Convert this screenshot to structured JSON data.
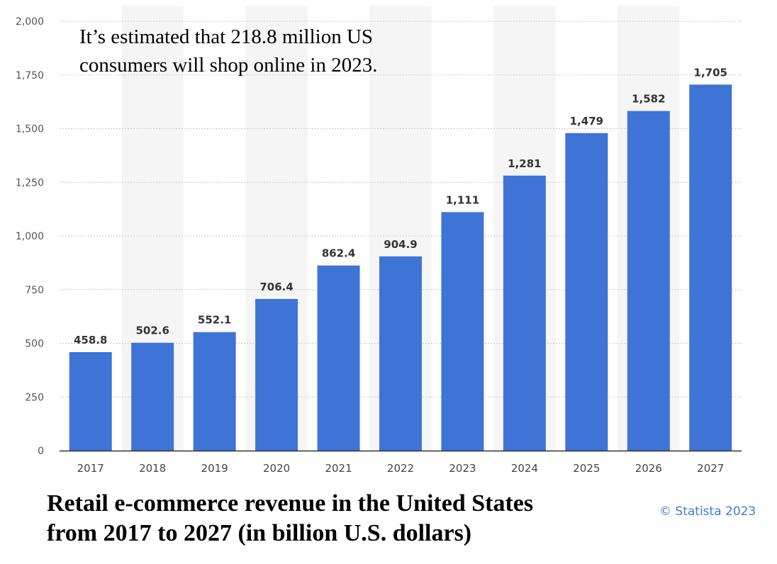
{
  "chart_data": {
    "type": "bar",
    "title_line1": "Retail e-commerce revenue in the United States",
    "title_line2": "from 2017 to 2027 (in billion U.S. dollars)",
    "annotation_line1": "It’s estimated that 218.8 million US",
    "annotation_line2": "consumers will shop online in 2023.",
    "source": "© Statista 2023",
    "xlabel": "",
    "ylabel": "",
    "categories": [
      "2017",
      "2018",
      "2019",
      "2020",
      "2021",
      "2022",
      "2023",
      "2024",
      "2025",
      "2026",
      "2027"
    ],
    "values": [
      458.8,
      502.6,
      552.1,
      706.4,
      862.4,
      904.9,
      1111,
      1281,
      1479,
      1582,
      1705
    ],
    "value_labels": [
      "458.8",
      "502.6",
      "552.1",
      "706.4",
      "862.4",
      "904.9",
      "1,111",
      "1,281",
      "1,479",
      "1,582",
      "1,705"
    ],
    "ylim": [
      0,
      2000
    ],
    "yticks": [
      0,
      250,
      500,
      750,
      1000,
      1250,
      1500,
      1750,
      2000
    ],
    "ytick_labels": [
      "0",
      "250",
      "500",
      "750",
      "1,000",
      "1,250",
      "1,500",
      "1,750",
      "2,000"
    ],
    "grid": true,
    "bar_color": "#3f73d6",
    "alt_band_color": "#f5f5f5",
    "source_color": "#3f7bd1"
  }
}
